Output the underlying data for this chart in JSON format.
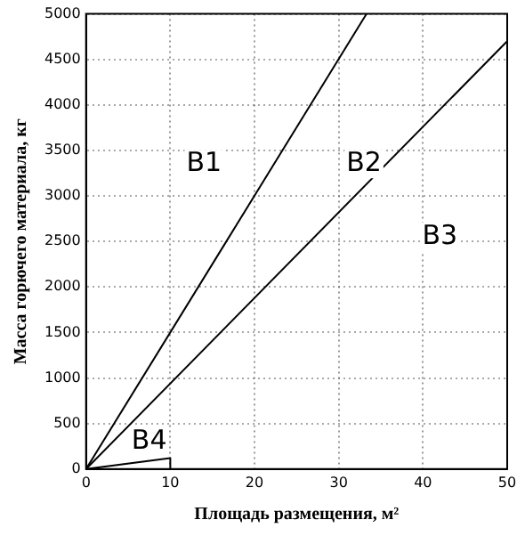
{
  "chart_data": {
    "type": "line",
    "xlabel": "Площадь размещения, м²",
    "ylabel": "Масса горючего материала, кг",
    "series": [
      {
        "color": "#000000",
        "x": [
          0,
          33.3
        ],
        "values": [
          0,
          5000
        ]
      },
      {
        "color": "#000000",
        "x": [
          0,
          50
        ],
        "values": [
          0,
          4700
        ]
      },
      {
        "color": "#000000",
        "x": [
          0,
          10,
          10
        ],
        "values": [
          0,
          120,
          0
        ]
      }
    ],
    "xlim": [
      0,
      50
    ],
    "xticks": [
      0,
      10,
      20,
      30,
      40,
      50
    ],
    "ylim": [
      0,
      5000
    ],
    "yticks": [
      0,
      500,
      1000,
      1500,
      2000,
      2500,
      3000,
      3500,
      4000,
      4500,
      5000
    ],
    "grid": true,
    "marker": "none",
    "line_style": "solid",
    "annotations": [
      "B1",
      "B2",
      "B3",
      "B4"
    ]
  }
}
